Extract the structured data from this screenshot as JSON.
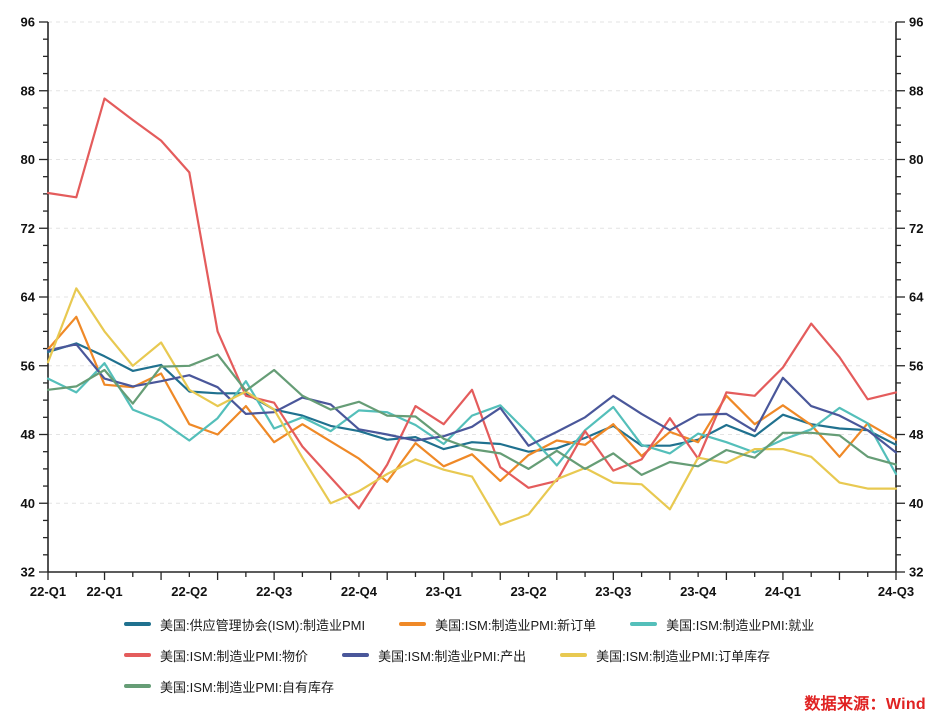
{
  "chart_data": {
    "type": "line",
    "title": "",
    "xlabel": "",
    "ylabel": "",
    "ylim": [
      32,
      96
    ],
    "y_ticks": [
      32,
      40,
      48,
      56,
      64,
      72,
      80,
      88,
      96
    ],
    "y_minor_step": 2,
    "grid": "horizontal dashed at major y ticks",
    "legend_position": "bottom-left",
    "x_labels": [
      "22-Q1",
      "22-Q1",
      "22-Q2",
      "22-Q3",
      "22-Q4",
      "23-Q1",
      "23-Q2",
      "23-Q3",
      "23-Q4",
      "24-Q1",
      "24-Q3"
    ],
    "x_label_indices": [
      0,
      2,
      5,
      8,
      11,
      14,
      17,
      20,
      23,
      26,
      30
    ],
    "x_point_count": 31,
    "x_description": "monthly points from 2022-Q1 through 2024-Q3",
    "series": [
      {
        "name": "美国:供应管理协会(ISM):制造业PMI",
        "color": "#20718f",
        "values": [
          57.6,
          58.6,
          57.1,
          55.4,
          56.1,
          53.0,
          52.8,
          52.8,
          50.9,
          50.2,
          49.0,
          48.4,
          47.4,
          47.7,
          46.3,
          47.1,
          46.9,
          46.0,
          46.4,
          47.6,
          49.0,
          46.7,
          46.7,
          47.4,
          49.1,
          47.8,
          50.3,
          49.2,
          48.7,
          48.5,
          46.8
        ]
      },
      {
        "name": "美国:ISM:制造业PMI:新订单",
        "color": "#ef8927",
        "values": [
          57.9,
          61.7,
          53.8,
          53.5,
          55.1,
          49.2,
          48.0,
          51.3,
          47.1,
          49.2,
          47.2,
          45.2,
          42.5,
          47.0,
          44.3,
          45.7,
          42.6,
          45.6,
          47.3,
          46.8,
          49.2,
          45.5,
          48.3,
          47.1,
          52.5,
          49.2,
          51.4,
          49.1,
          45.4,
          49.3,
          47.4
        ]
      },
      {
        "name": "美国:ISM:制造业PMI:就业",
        "color": "#54bfba",
        "values": [
          54.5,
          52.9,
          56.3,
          50.9,
          49.6,
          47.3,
          49.9,
          54.2,
          48.7,
          50.0,
          48.4,
          50.8,
          50.6,
          49.1,
          46.9,
          50.2,
          51.4,
          48.1,
          44.4,
          48.5,
          51.2,
          46.8,
          45.8,
          48.1,
          47.1,
          45.9,
          47.4,
          48.6,
          51.1,
          49.3,
          43.4
        ]
      },
      {
        "name": "美国:ISM:制造业PMI:物价",
        "color": "#e45c5c",
        "values": [
          76.1,
          75.6,
          87.1,
          84.6,
          82.2,
          78.5,
          60.0,
          52.5,
          51.7,
          46.6,
          43.0,
          39.4,
          44.5,
          51.3,
          49.2,
          53.2,
          44.2,
          41.8,
          42.6,
          48.4,
          43.8,
          45.1,
          49.9,
          45.2,
          52.9,
          52.5,
          55.8,
          60.9,
          57.0,
          52.1,
          52.9
        ]
      },
      {
        "name": "美国:ISM:制造业PMI:产出",
        "color": "#4a579a",
        "values": [
          57.8,
          58.5,
          54.5,
          53.6,
          54.2,
          54.9,
          53.5,
          50.4,
          50.6,
          52.3,
          51.5,
          48.6,
          48.0,
          47.3,
          47.8,
          48.9,
          51.1,
          46.7,
          48.3,
          50.0,
          52.5,
          50.4,
          48.5,
          50.3,
          50.4,
          48.4,
          54.6,
          51.3,
          50.2,
          48.5,
          45.9
        ]
      },
      {
        "name": "美国:ISM:制造业PMI:订单库存",
        "color": "#e8c951",
        "values": [
          56.4,
          65.0,
          60.0,
          56.0,
          58.7,
          53.2,
          51.3,
          53.0,
          50.9,
          45.3,
          40.0,
          41.4,
          43.4,
          45.1,
          43.9,
          43.1,
          37.5,
          38.7,
          42.8,
          44.1,
          42.4,
          42.2,
          39.3,
          45.3,
          44.7,
          46.3,
          46.3,
          45.4,
          42.4,
          41.7,
          41.7
        ]
      },
      {
        "name": "美国:ISM:制造业PMI:自有库存",
        "color": "#669d76",
        "values": [
          53.2,
          53.6,
          55.5,
          51.6,
          55.9,
          56.0,
          57.3,
          53.1,
          55.5,
          52.5,
          50.9,
          51.8,
          50.2,
          50.1,
          47.5,
          46.3,
          45.8,
          44.0,
          46.1,
          44.0,
          45.8,
          43.3,
          44.8,
          44.3,
          46.2,
          45.3,
          48.2,
          48.2,
          47.9,
          45.4,
          44.5
        ]
      }
    ]
  },
  "source_note": {
    "text": "数据来源：Wind",
    "color": "#e02222"
  },
  "style": {
    "axis_color": "#262626",
    "grid_color": "#e3e3e3",
    "tick_label_color": "#111111"
  }
}
